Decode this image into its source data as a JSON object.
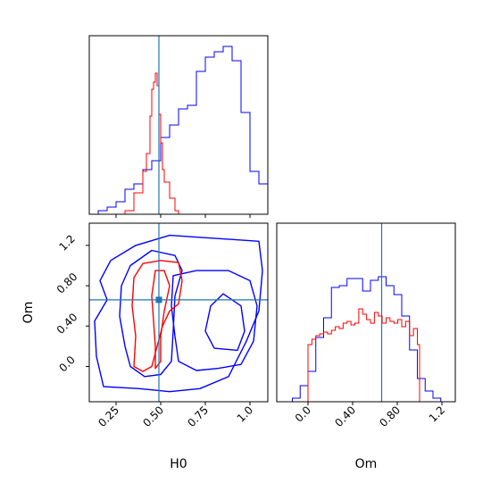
{
  "chart_data": {
    "type": "corner",
    "parameters": [
      "H0",
      "Om"
    ],
    "truth": {
      "H0": 0.49,
      "Om": 0.66
    },
    "colors": {
      "blue": "#0000ff",
      "red": "#ff0000",
      "truth": "#1f77b4"
    },
    "panels": {
      "h0_hist": {
        "type": "histogram",
        "xlim": [
          0.1,
          1.1
        ],
        "x_ticks": [
          0.25,
          0.5,
          0.75,
          1.0
        ],
        "series": [
          {
            "color": "blue",
            "edges": [
              0.15,
              0.2,
              0.25,
              0.3,
              0.35,
              0.4,
              0.45,
              0.5,
              0.55,
              0.6,
              0.65,
              0.7,
              0.75,
              0.8,
              0.85,
              0.9,
              0.95,
              1.0,
              1.05,
              1.1
            ],
            "counts": [
              0.02,
              0.04,
              0.07,
              0.14,
              0.17,
              0.25,
              0.3,
              0.43,
              0.5,
              0.59,
              0.61,
              0.8,
              0.88,
              0.91,
              0.94,
              0.86,
              0.57,
              0.24,
              0.17
            ]
          },
          {
            "color": "red",
            "edges": [
              0.3,
              0.35,
              0.4,
              0.42,
              0.44,
              0.45,
              0.46,
              0.47,
              0.48,
              0.49,
              0.5,
              0.51,
              0.52,
              0.55,
              0.58,
              0.6
            ],
            "counts": [
              0.02,
              0.12,
              0.24,
              0.34,
              0.55,
              0.7,
              0.74,
              0.79,
              0.72,
              0.56,
              0.4,
              0.25,
              0.18,
              0.09,
              0.02
            ]
          }
        ]
      },
      "om_hist": {
        "type": "histogram",
        "xlim": [
          -0.28,
          1.32
        ],
        "x_ticks": [
          0.0,
          0.4,
          0.8,
          1.2
        ],
        "series": [
          {
            "color": "blue",
            "edges": [
              -0.28,
              -0.14,
              -0.07,
              0.0,
              0.07,
              0.14,
              0.21,
              0.28,
              0.35,
              0.42,
              0.49,
              0.56,
              0.63,
              0.7,
              0.77,
              0.84,
              0.91,
              0.98,
              1.05,
              1.12,
              1.19
            ],
            "counts": [
              0.0,
              0.02,
              0.09,
              0.17,
              0.36,
              0.47,
              0.64,
              0.65,
              0.69,
              0.69,
              0.62,
              0.68,
              0.7,
              0.65,
              0.6,
              0.48,
              0.29,
              0.13,
              0.06,
              0.02
            ]
          },
          {
            "color": "red",
            "edges": [
              0.0,
              0.035,
              0.07,
              0.105,
              0.14,
              0.175,
              0.21,
              0.245,
              0.28,
              0.315,
              0.35,
              0.385,
              0.42,
              0.455,
              0.49,
              0.525,
              0.56,
              0.595,
              0.63,
              0.665,
              0.7,
              0.735,
              0.77,
              0.805,
              0.84,
              0.875,
              0.91,
              0.945,
              0.98,
              1.0
            ],
            "counts": [
              0.32,
              0.35,
              0.37,
              0.38,
              0.39,
              0.38,
              0.4,
              0.42,
              0.41,
              0.44,
              0.45,
              0.43,
              0.44,
              0.52,
              0.49,
              0.46,
              0.44,
              0.5,
              0.48,
              0.44,
              0.47,
              0.45,
              0.44,
              0.46,
              0.42,
              0.45,
              0.37,
              0.41,
              0.32
            ]
          }
        ]
      },
      "joint": {
        "type": "contour",
        "xlim": [
          0.1,
          1.1
        ],
        "ylim": [
          -0.35,
          1.42
        ],
        "x_ticks": [
          0.25,
          0.5,
          0.75,
          1.0
        ],
        "y_ticks": [
          0.0,
          0.4,
          0.8,
          1.2
        ],
        "contours": [
          {
            "color": "blue",
            "points": [
              [
                0.18,
                -0.2
              ],
              [
                0.14,
                0.1
              ],
              [
                0.13,
                0.45
              ],
              [
                0.2,
                0.66
              ],
              [
                0.16,
                0.85
              ],
              [
                0.22,
                1.05
              ],
              [
                0.36,
                1.2
              ],
              [
                0.55,
                1.3
              ],
              [
                0.8,
                1.27
              ],
              [
                1.05,
                1.24
              ],
              [
                1.07,
                0.95
              ],
              [
                1.05,
                0.55
              ],
              [
                0.98,
                0.25
              ],
              [
                0.88,
                -0.1
              ],
              [
                0.72,
                -0.22
              ],
              [
                0.55,
                -0.25
              ],
              [
                0.38,
                -0.22
              ],
              [
                0.18,
                -0.2
              ]
            ]
          },
          {
            "color": "blue",
            "points": [
              [
                0.85,
                0.72
              ],
              [
                0.78,
                0.6
              ],
              [
                0.75,
                0.35
              ],
              [
                0.8,
                0.18
              ],
              [
                0.93,
                0.16
              ],
              [
                0.97,
                0.35
              ],
              [
                0.95,
                0.6
              ],
              [
                0.85,
                0.72
              ]
            ]
          },
          {
            "color": "blue",
            "points": [
              [
                0.7,
                0.95
              ],
              [
                0.57,
                0.9
              ],
              [
                0.56,
                0.6
              ],
              [
                0.58,
                0.3
              ],
              [
                0.6,
                0.05
              ],
              [
                0.7,
                -0.04
              ],
              [
                0.82,
                -0.02
              ],
              [
                0.95,
                0.02
              ],
              [
                1.02,
                0.25
              ],
              [
                1.04,
                0.6
              ],
              [
                1.0,
                0.85
              ],
              [
                0.88,
                0.95
              ],
              [
                0.7,
                0.95
              ]
            ]
          },
          {
            "color": "blue",
            "points": [
              [
                0.45,
                1.15
              ],
              [
                0.33,
                1.0
              ],
              [
                0.28,
                0.8
              ],
              [
                0.27,
                0.5
              ],
              [
                0.3,
                0.2
              ],
              [
                0.33,
                0.0
              ],
              [
                0.41,
                -0.1
              ],
              [
                0.5,
                -0.08
              ],
              [
                0.56,
                0.05
              ],
              [
                0.57,
                0.35
              ],
              [
                0.58,
                0.7
              ],
              [
                0.62,
                0.95
              ],
              [
                0.58,
                1.1
              ],
              [
                0.45,
                1.15
              ]
            ]
          },
          {
            "color": "red",
            "points": [
              [
                0.4,
                1.02
              ],
              [
                0.35,
                0.88
              ],
              [
                0.34,
                0.6
              ],
              [
                0.36,
                0.3
              ],
              [
                0.35,
                0.0
              ],
              [
                0.4,
                -0.05
              ],
              [
                0.45,
                0.0
              ],
              [
                0.48,
                0.2
              ],
              [
                0.51,
                0.4
              ],
              [
                0.55,
                0.55
              ],
              [
                0.6,
                0.62
              ],
              [
                0.62,
                0.85
              ],
              [
                0.6,
                1.03
              ],
              [
                0.5,
                1.05
              ],
              [
                0.4,
                1.02
              ]
            ]
          },
          {
            "color": "red",
            "points": [
              [
                0.47,
                0.95
              ],
              [
                0.45,
                0.7
              ],
              [
                0.46,
                0.45
              ],
              [
                0.47,
                0.2
              ],
              [
                0.47,
                -0.02
              ],
              [
                0.5,
                0.05
              ],
              [
                0.5,
                0.3
              ],
              [
                0.52,
                0.55
              ],
              [
                0.55,
                0.8
              ],
              [
                0.52,
                0.95
              ],
              [
                0.47,
                0.95
              ]
            ]
          }
        ]
      }
    },
    "xlabel_left": "H0",
    "xlabel_right": "Om",
    "ylabel_left": "Om"
  }
}
